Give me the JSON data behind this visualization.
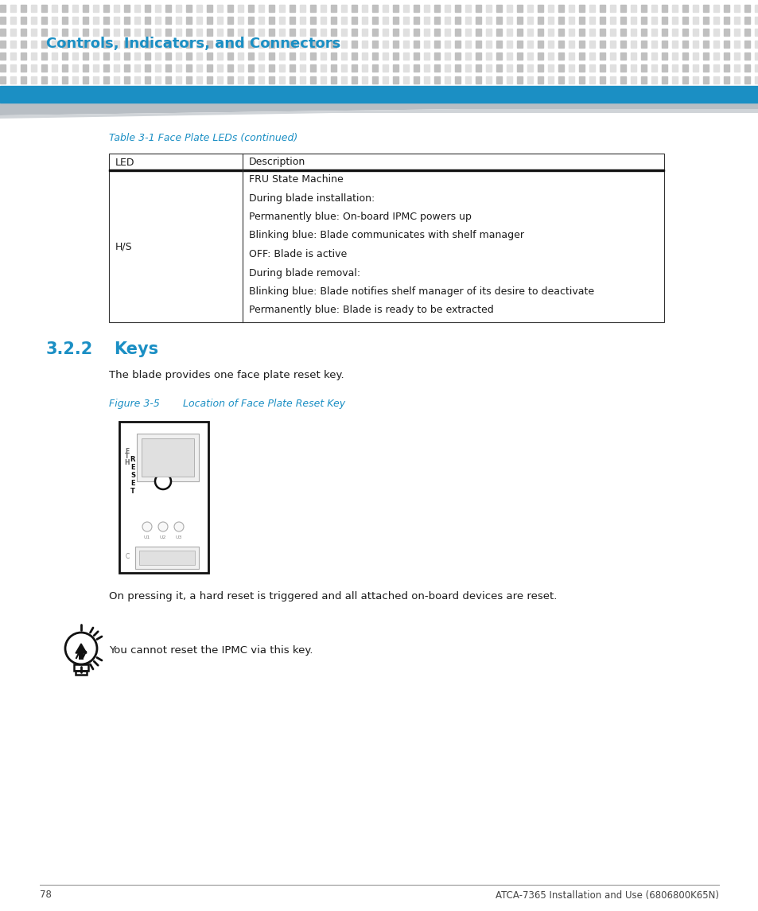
{
  "page_bg": "#ffffff",
  "header_dot_color_light": "#e0e0e0",
  "header_dot_color_dark": "#c0c0c0",
  "header_title": "Controls, Indicators, and Connectors",
  "header_title_color": "#1b8fc4",
  "blue_bar_color": "#1b8fc4",
  "table_caption": "Table 3-1 Face Plate LEDs (continued)",
  "table_caption_color": "#1b8fc4",
  "table_border_color": "#333333",
  "table_col1_header": "LED",
  "table_col2_header": "Description",
  "table_row1_col1": "H/S",
  "table_row1_col2_lines": [
    "FRU State Machine",
    "During blade installation:",
    "Permanently blue: On-board IPMC powers up",
    "Blinking blue: Blade communicates with shelf manager",
    "OFF: Blade is active",
    "During blade removal:",
    "Blinking blue: Blade notifies shelf manager of its desire to deactivate",
    "Permanently blue: Blade is ready to be extracted"
  ],
  "section_num": "3.2.2",
  "section_title": "Keys",
  "section_color": "#1b8fc4",
  "body_text1": "The blade provides one face plate reset key.",
  "figure_caption_num": "Figure 3-5",
  "figure_caption_desc": "Location of Face Plate Reset Key",
  "figure_caption_color": "#1b8fc4",
  "body_text2": "On pressing it, a hard reset is triggered and all attached on-board devices are reset.",
  "note_text": "You cannot reset the IPMC via this key.",
  "footer_page": "78",
  "footer_right": "ATCA-7365 Installation and Use (6806800K65N)",
  "footer_color": "#444444",
  "text_color": "#1a1a1a"
}
